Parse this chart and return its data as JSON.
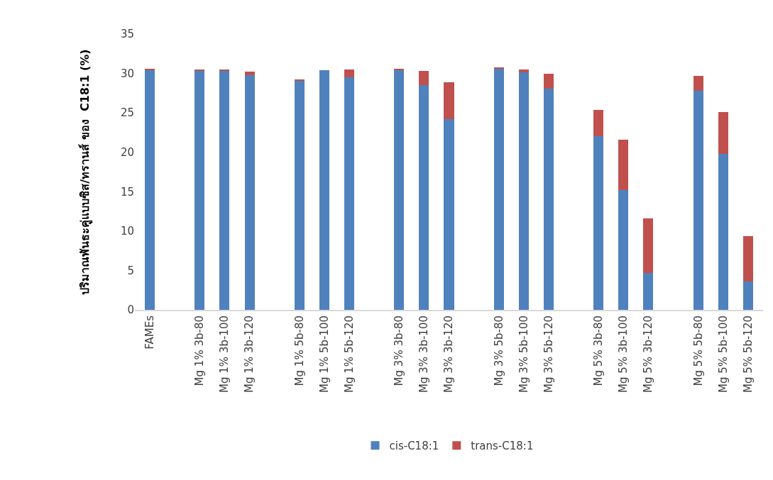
{
  "chart_data": {
    "type": "bar",
    "stacked": true,
    "ylabel": "ปริมาณพันธะคู่แบบซิส/ทรานส์ ของ  C18:1 (%)",
    "categories": [
      "FAMEs",
      null,
      "Mg 1% 3b-80",
      "Mg 1% 3b-100",
      "Mg 1% 3b-120",
      null,
      "Mg 1% 5b-80",
      "Mg 1% 5b-100",
      "Mg 1% 5b-120",
      null,
      "Mg 3% 3b-80",
      "Mg 3% 3b-100",
      "Mg 3% 3b-120",
      null,
      "Mg 3% 5b-80",
      "Mg 3% 5b-100",
      "Mg 3% 5b-120",
      null,
      "Mg 5% 3b-80",
      "Mg 5% 3b-100",
      "Mg 5% 3b-120",
      null,
      "Mg 5% 5b-80",
      "Mg 5% 5b-100",
      "Mg 5% 5b-120"
    ],
    "series": [
      {
        "name": "cis-C18:1",
        "color": "#4f81bd",
        "values": [
          30.5,
          null,
          30.4,
          30.4,
          29.8,
          null,
          29.1,
          30.4,
          29.5,
          null,
          30.5,
          28.5,
          24.2,
          null,
          30.6,
          30.1,
          28.1,
          null,
          22.0,
          15.2,
          4.7,
          null,
          27.8,
          19.8,
          3.6
        ]
      },
      {
        "name": "trans-C18:1",
        "color": "#c0504d",
        "values": [
          0.1,
          null,
          0.1,
          0.1,
          0.4,
          null,
          0.1,
          0.0,
          1.0,
          null,
          0.1,
          1.8,
          4.7,
          null,
          0.1,
          0.4,
          1.9,
          null,
          3.4,
          6.4,
          6.9,
          null,
          1.9,
          5.3,
          5.8
        ]
      }
    ],
    "ylim": [
      0,
      35
    ],
    "yticks": [
      0,
      5,
      10,
      15,
      20,
      25,
      30,
      35
    ],
    "legend": "bottom"
  }
}
